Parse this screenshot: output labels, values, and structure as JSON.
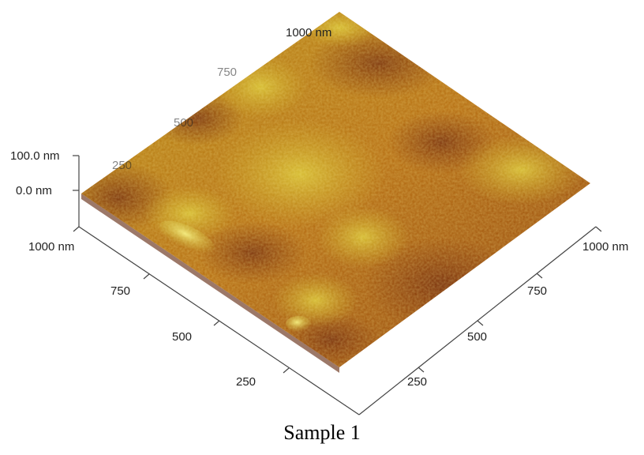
{
  "figure": {
    "caption": "Sample 1",
    "z_axis": {
      "top_label": "100.0 nm",
      "bottom_label": "0.0 nm"
    },
    "left_axis": {
      "labels": [
        "1000 nm",
        "750",
        "500",
        "250"
      ]
    },
    "right_axis": {
      "labels": [
        "1000 nm",
        "750",
        "500",
        "250"
      ]
    },
    "back_axis": {
      "labels": [
        "1000 nm",
        "750",
        "500",
        "250"
      ]
    },
    "colors": {
      "dark": "#7a2a08",
      "mid": "#b8660e",
      "light": "#c9a31c",
      "highlight": "#e2d64a",
      "axis": "#444444"
    }
  }
}
